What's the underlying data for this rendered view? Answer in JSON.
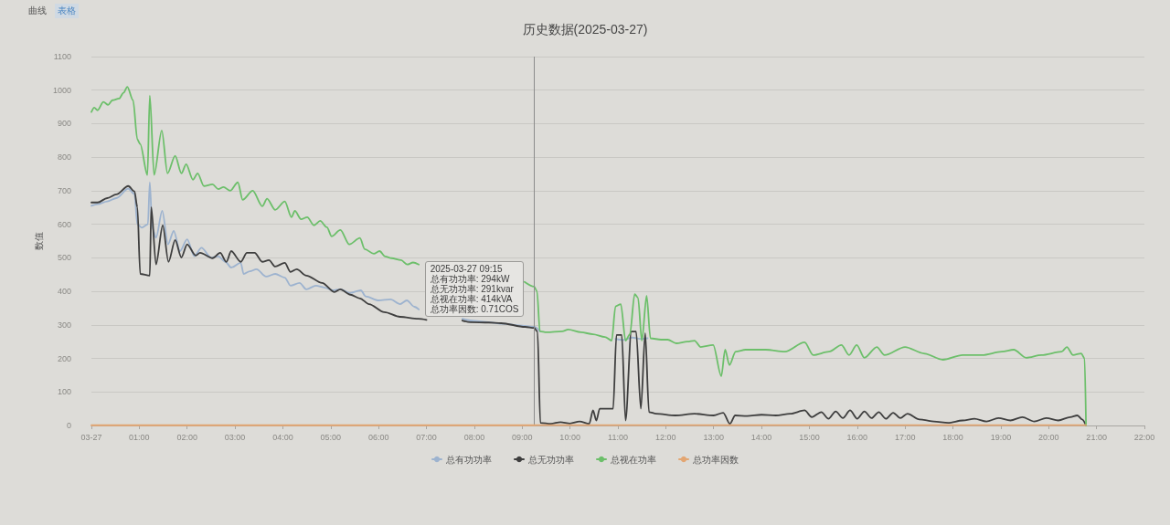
{
  "chart_data": {
    "type": "line",
    "title": "历史数据(2025-03-27)",
    "ylabel": "数值",
    "annotations": [
      "曲线",
      "表格",
      {
        "text": "2025-03-27 09:15\n总有功功率: 294kW\n总无功功率: 291kvar\n总视在功率: 414kVA\n总功率因数: 0.71COS",
        "x": 9.25,
        "y": 414
      }
    ],
    "xlim": [
      0,
      22
    ],
    "xticks": [
      {
        "value": 0,
        "label": "03-27"
      },
      {
        "value": 1,
        "label": "01:00"
      },
      {
        "value": 2,
        "label": "02:00"
      },
      {
        "value": 3,
        "label": "03:00"
      },
      {
        "value": 4,
        "label": "04:00"
      },
      {
        "value": 5,
        "label": "05:00"
      },
      {
        "value": 6,
        "label": "06:00"
      },
      {
        "value": 7,
        "label": "07:00"
      },
      {
        "value": 8,
        "label": "08:00"
      },
      {
        "value": 9,
        "label": "09:00"
      },
      {
        "value": 10,
        "label": "10:00"
      },
      {
        "value": 11,
        "label": "11:00"
      },
      {
        "value": 12,
        "label": "12:00"
      },
      {
        "value": 13,
        "label": "13:00"
      },
      {
        "value": 14,
        "label": "14:00"
      },
      {
        "value": 15,
        "label": "15:00"
      },
      {
        "value": 16,
        "label": "16:00"
      },
      {
        "value": 17,
        "label": "17:00"
      },
      {
        "value": 18,
        "label": "18:00"
      },
      {
        "value": 19,
        "label": "19:00"
      },
      {
        "value": 20,
        "label": "20:00"
      },
      {
        "value": 21,
        "label": "21:00"
      },
      {
        "value": 22,
        "label": "22:00"
      }
    ],
    "ylim": [
      0,
      1100
    ],
    "yticks": [
      0,
      100,
      200,
      300,
      400,
      500,
      600,
      700,
      800,
      900,
      1000,
      1100
    ],
    "grid": "y",
    "legend": "bottom",
    "ref_lines": [
      {
        "axis": "x",
        "value": 9.25,
        "color": "#8c8c8c"
      }
    ],
    "series": [
      {
        "name": "总有功功率",
        "color": "#9db3cf",
        "x": [
          0,
          0.13,
          0.33,
          0.52,
          0.77,
          0.9,
          0.96,
          1.05,
          1.18,
          1.22,
          1.27,
          1.35,
          1.48,
          1.6,
          1.72,
          1.85,
          2,
          2.15,
          2.3,
          2.5,
          2.65,
          2.8,
          2.92,
          3.12,
          3.18,
          3.31,
          3.45,
          3.65,
          3.84,
          4.04,
          4.16,
          4.35,
          4.49,
          4.69,
          4.88,
          5.04,
          5.2,
          5.4,
          5.63,
          5.73,
          6,
          6.25,
          6.45,
          6.59,
          6.75,
          6.84,
          7.35,
          7.75,
          8,
          8.3,
          8.6,
          9,
          9.25,
          9.37,
          9.5,
          10.95,
          11.1,
          11.3,
          11.5,
          11.62
        ],
        "values": [
          655,
          660,
          668,
          678,
          706,
          690,
          600,
          590,
          600,
          725,
          590,
          560,
          640,
          540,
          580,
          520,
          555,
          505,
          530,
          500,
          505,
          488,
          471,
          485,
          452,
          460,
          466,
          444,
          452,
          441,
          417,
          425,
          406,
          417,
          411,
          403,
          406,
          395,
          403,
          385,
          373,
          376,
          362,
          373,
          354,
          346,
          null,
          318,
          312,
          308,
          303,
          298,
          294,
          281,
          null,
          258,
          255,
          262,
          258,
          260
        ]
      },
      {
        "name": "总无功功率",
        "color": "#3e3e3e",
        "x": [
          0,
          0.13,
          0.33,
          0.52,
          0.77,
          0.9,
          0.96,
          1.02,
          1.22,
          1.25,
          1.35,
          1.49,
          1.61,
          1.75,
          1.88,
          2,
          2.18,
          2.27,
          2.53,
          2.69,
          2.82,
          2.92,
          3.12,
          3.25,
          3.41,
          3.57,
          3.71,
          3.84,
          4.04,
          4.16,
          4.29,
          4.49,
          4.82,
          5.08,
          5.2,
          5.41,
          5.61,
          5.8,
          6.12,
          6.45,
          6.83,
          7,
          7.35,
          7.75,
          7.92,
          8.3,
          8.56,
          9.06,
          9.25,
          9.32,
          9.38,
          9.6,
          9.8,
          10,
          10.2,
          10.4,
          10.48,
          10.55,
          10.62,
          10.9,
          10.97,
          11.08,
          11.16,
          11.28,
          11.38,
          11.48,
          11.57,
          11.65,
          11.8,
          12.2,
          12.6,
          13,
          13.2,
          13.34,
          13.45,
          13.7,
          14,
          14.3,
          14.6,
          14.9,
          15.05,
          15.25,
          15.4,
          15.55,
          15.7,
          15.85,
          16,
          16.15,
          16.3,
          16.45,
          16.6,
          16.75,
          16.9,
          17.05,
          17.3,
          17.6,
          17.9,
          18.2,
          18.45,
          18.7,
          18.95,
          19.2,
          19.45,
          19.7,
          19.95,
          20.2,
          20.45,
          20.6,
          20.7,
          20.78
        ],
        "values": [
          665,
          665,
          678,
          689,
          714,
          698,
          651,
          452,
          447,
          651,
          480,
          597,
          488,
          553,
          501,
          540,
          507,
          515,
          499,
          515,
          488,
          520,
          488,
          515,
          515,
          488,
          493,
          474,
          485,
          458,
          466,
          447,
          425,
          398,
          406,
          390,
          379,
          362,
          338,
          324,
          318,
          315,
          null,
          313,
          308,
          307,
          305,
          294,
          291,
          280,
          8,
          5,
          10,
          6,
          12,
          5,
          45,
          15,
          50,
          50,
          270,
          270,
          15,
          280,
          280,
          50,
          275,
          40,
          35,
          30,
          35,
          30,
          38,
          5,
          30,
          28,
          32,
          30,
          35,
          45,
          25,
          40,
          20,
          42,
          22,
          45,
          20,
          42,
          22,
          40,
          20,
          38,
          22,
          35,
          18,
          12,
          8,
          15,
          20,
          12,
          22,
          15,
          25,
          12,
          22,
          15,
          25,
          30,
          18,
          0
        ]
      },
      {
        "name": "总视在功率",
        "color": "#6cbf6a",
        "x": [
          0,
          0.06,
          0.13,
          0.25,
          0.35,
          0.44,
          0.58,
          0.67,
          0.75,
          0.87,
          0.96,
          1.02,
          1.17,
          1.22,
          1.31,
          1.47,
          1.59,
          1.75,
          1.88,
          1.98,
          2.12,
          2.22,
          2.35,
          2.53,
          2.65,
          2.76,
          2.9,
          3.06,
          3.16,
          3.37,
          3.57,
          3.67,
          3.84,
          4.04,
          4.18,
          4.25,
          4.38,
          4.51,
          4.65,
          4.78,
          4.92,
          5.02,
          5.2,
          5.39,
          5.61,
          5.71,
          5.9,
          6.02,
          6.14,
          6.27,
          6.47,
          6.6,
          6.72,
          6.84,
          8,
          9.05,
          9.25,
          9.31,
          9.37,
          9.51,
          9.84,
          9.96,
          10.23,
          10.48,
          10.73,
          10.87,
          10.95,
          11.06,
          11.16,
          11.25,
          11.35,
          11.42,
          11.5,
          11.6,
          11.68,
          11.9,
          12.04,
          12.22,
          12.45,
          12.6,
          12.73,
          12.99,
          13.16,
          13.24,
          13.33,
          13.46,
          13.67,
          14.09,
          14.49,
          14.9,
          15.08,
          15.41,
          15.67,
          15.83,
          15.99,
          16.15,
          16.41,
          16.57,
          17,
          17.39,
          17.79,
          18.2,
          18.61,
          19.02,
          19.27,
          19.53,
          19.85,
          20.27,
          20.38,
          20.51,
          20.68,
          20.75,
          20.78
        ],
        "values": [
          935,
          948,
          940,
          965,
          956,
          970,
          975,
          992,
          1010,
          970,
          853,
          839,
          747,
          984,
          747,
          880,
          752,
          804,
          752,
          779,
          733,
          752,
          714,
          719,
          705,
          711,
          700,
          725,
          673,
          700,
          654,
          676,
          643,
          668,
          621,
          640,
          615,
          621,
          597,
          610,
          591,
          564,
          583,
          540,
          559,
          526,
          512,
          520,
          504,
          499,
          493,
          480,
          486,
          480,
          null,
          428,
          414,
          400,
          281,
          278,
          281,
          286,
          278,
          272,
          264,
          253,
          355,
          362,
          253,
          272,
          392,
          381,
          253,
          387,
          260,
          256,
          256,
          245,
          250,
          253,
          234,
          240,
          147,
          226,
          180,
          220,
          226,
          226,
          220,
          248,
          210,
          220,
          240,
          210,
          240,
          202,
          234,
          210,
          234,
          215,
          196,
          210,
          210,
          220,
          226,
          202,
          210,
          220,
          234,
          210,
          215,
          200,
          0
        ]
      },
      {
        "name": "总功率因数",
        "color": "#e3a672",
        "x": [
          0,
          9.25,
          9.37,
          20.78
        ],
        "values": [
          0.7,
          0.71,
          1,
          1
        ]
      }
    ]
  }
}
